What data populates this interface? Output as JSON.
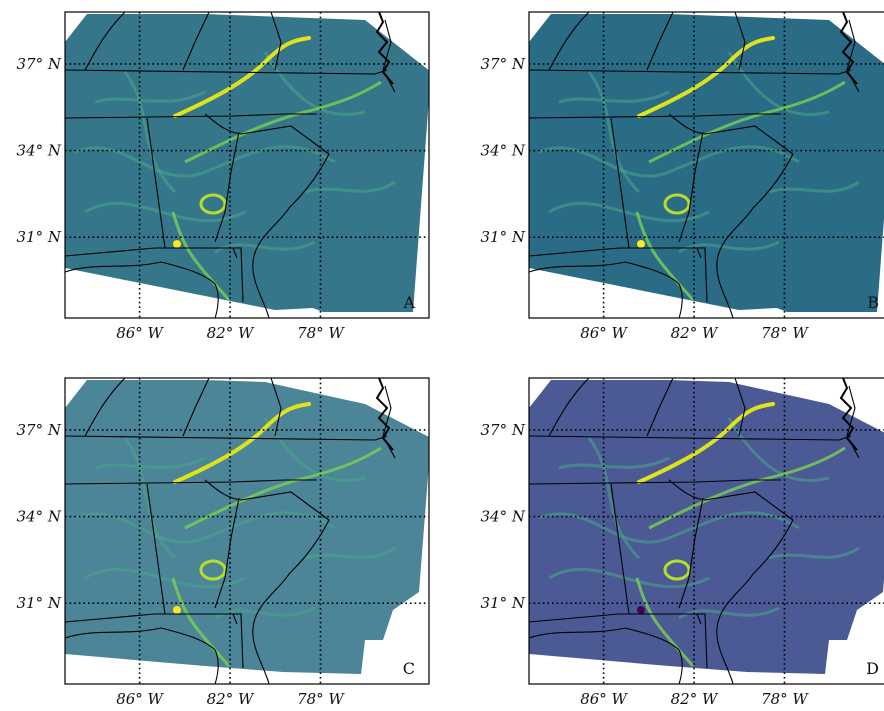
{
  "chart_data": {
    "type": "heatmap",
    "grid": true,
    "x_ticks": [
      {
        "value": -86,
        "label": "86° W"
      },
      {
        "value": -82,
        "label": "82° W"
      },
      {
        "value": -78,
        "label": "78° W"
      }
    ],
    "y_ticks": [
      {
        "value": 37,
        "label": "37° N"
      },
      {
        "value": 34,
        "label": "34° N"
      },
      {
        "value": 31,
        "label": "31° N"
      }
    ],
    "xlim": [
      -89.3,
      -73.2
    ],
    "ylim": [
      28.2,
      38.8
    ],
    "colormap": "viridis",
    "panels": [
      {
        "label": "A",
        "background": "#2b6f85",
        "alpha": 0.95,
        "right_edge": "straight"
      },
      {
        "label": "B",
        "background": "#2a6b85",
        "alpha": 1.0,
        "right_edge": "straight"
      },
      {
        "label": "C",
        "background": "#2d6e86",
        "alpha": 0.85,
        "right_edge": "ragged"
      },
      {
        "label": "D",
        "background": "#37488a",
        "alpha": 0.9,
        "right_edge": "ragged"
      }
    ]
  }
}
